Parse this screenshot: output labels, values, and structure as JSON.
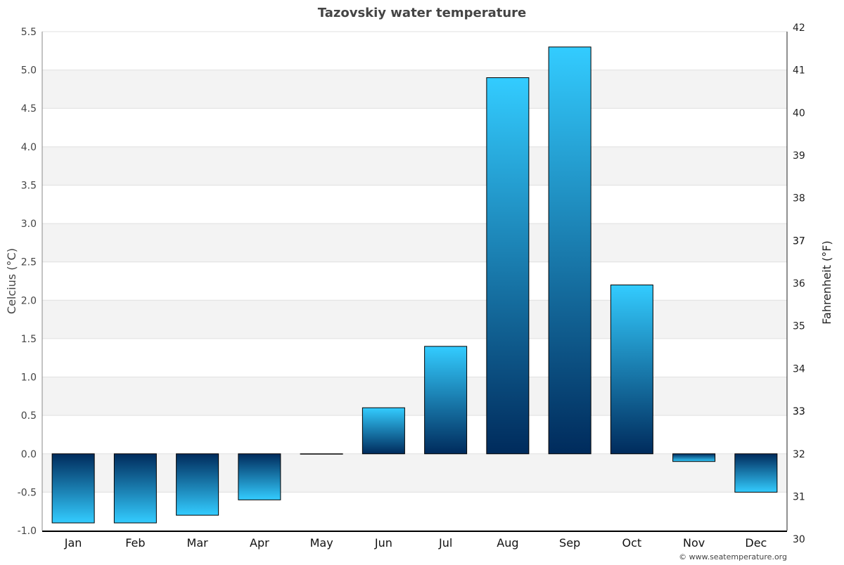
{
  "chart_data": {
    "type": "bar",
    "title": "Tazovskiy water temperature",
    "ylabel": "Celcius (°C)",
    "y2label": "Fahrenheit (°F)",
    "categories": [
      "Jan",
      "Feb",
      "Mar",
      "Apr",
      "May",
      "Jun",
      "Jul",
      "Aug",
      "Sep",
      "Oct",
      "Nov",
      "Dec"
    ],
    "values": [
      -0.9,
      -0.9,
      -0.8,
      -0.6,
      0.0,
      0.6,
      1.4,
      4.9,
      5.3,
      2.2,
      -0.1,
      -0.5
    ],
    "ylim": [
      -1.0,
      5.5
    ],
    "yticks": [
      "-1.0",
      "-0.5",
      "0.0",
      "0.5",
      "1.0",
      "1.5",
      "2.0",
      "2.5",
      "3.0",
      "3.5",
      "4.0",
      "4.5",
      "5.0",
      "5.5"
    ],
    "y2ticks": [
      "30",
      "31",
      "32",
      "33",
      "33",
      "34",
      "35",
      "36",
      "37",
      "37",
      "38",
      "39",
      "40",
      "41",
      "42"
    ],
    "grid": true,
    "colors": {
      "bar_light": "#33ccff",
      "bar_dark": "#002b5c",
      "band": "#f3f3f3"
    }
  },
  "credit": "© www.seatemperature.org"
}
